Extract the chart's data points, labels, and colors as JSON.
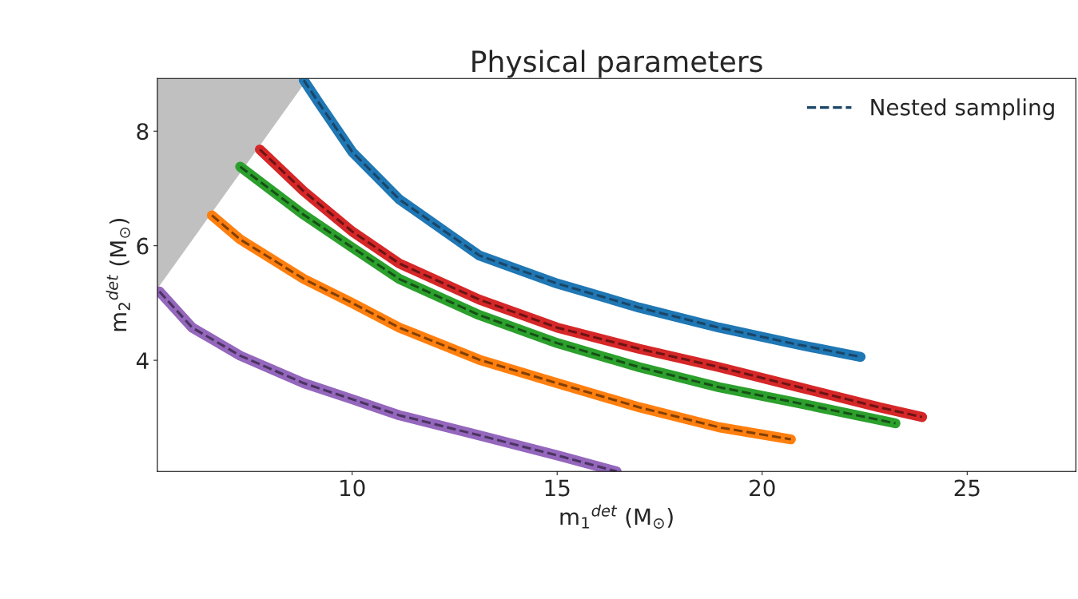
{
  "chart_data": {
    "type": "line",
    "title": "Physical parameters",
    "xlabel": "m$_{1}$$^{det}$ (M$_{⊙}$)",
    "ylabel": "m$_{2}$$^{det}$ (M$_{⊙}$)",
    "xlim": [
      5.25,
      27.65
    ],
    "ylim": [
      2.06,
      8.92
    ],
    "xticks": [
      10,
      15,
      20,
      25
    ],
    "yticks": [
      4,
      6,
      8
    ],
    "grid": false,
    "legend": "top right",
    "series": [
      {
        "type": "area",
        "color": "#c0c0c0",
        "x": [
          5.25,
          8.92
        ],
        "values": [
          5.25,
          8.92
        ]
      },
      {
        "color": "#1f77b4",
        "line_style": "solid",
        "x": [
          8.82,
          9.21,
          10,
          11.15,
          13.1,
          15,
          17,
          18.95,
          20.9,
          22.4
        ],
        "values": [
          8.89,
          8.47,
          7.64,
          6.81,
          5.83,
          5.34,
          4.92,
          4.57,
          4.27,
          4.06
        ]
      },
      {
        "color": "#d62728",
        "line_style": "solid",
        "x": [
          7.75,
          8.82,
          10,
          11.15,
          13.1,
          15,
          17,
          18.95,
          20.9,
          22.85,
          23.9
        ],
        "values": [
          7.68,
          6.95,
          6.25,
          5.69,
          5.06,
          4.57,
          4.2,
          3.88,
          3.53,
          3.18,
          3.01
        ]
      },
      {
        "color": "#2ca02c",
        "line_style": "solid",
        "x": [
          7.27,
          8.82,
          10,
          11.15,
          13.1,
          15,
          17,
          18.95,
          20.9,
          23.25
        ],
        "values": [
          7.38,
          6.54,
          5.97,
          5.42,
          4.79,
          4.3,
          3.88,
          3.53,
          3.25,
          2.9
        ]
      },
      {
        "color": "#ff7f0e",
        "line_style": "solid",
        "x": [
          6.58,
          7.27,
          8.82,
          10,
          11.15,
          13.1,
          15,
          17,
          18.95,
          20.7
        ],
        "values": [
          6.53,
          6.11,
          5.42,
          5.0,
          4.57,
          4.01,
          3.6,
          3.18,
          2.83,
          2.62
        ]
      },
      {
        "color": "#9467bd",
        "line_style": "solid",
        "x": [
          5.3,
          6.1,
          7.27,
          8.82,
          10,
          11.15,
          13.1,
          15,
          16.45
        ],
        "values": [
          5.2,
          4.57,
          4.08,
          3.6,
          3.32,
          3.04,
          2.69,
          2.34,
          2.06
        ]
      },
      {
        "name": "Nested sampling",
        "color": "#1a4566",
        "line_style": "dashed",
        "x": [
          8.82,
          9.21,
          10,
          11.15,
          13.1,
          15,
          17,
          18.95,
          20.9,
          22.4
        ],
        "values": [
          8.89,
          8.47,
          7.64,
          6.81,
          5.83,
          5.34,
          4.92,
          4.57,
          4.27,
          4.06
        ]
      },
      {
        "color": "#6b1414",
        "line_style": "dashed",
        "x": [
          7.75,
          8.82,
          10,
          11.15,
          13.1,
          15,
          17,
          18.95,
          20.9,
          22.85,
          23.9
        ],
        "values": [
          7.68,
          6.95,
          6.25,
          5.69,
          5.06,
          4.57,
          4.2,
          3.88,
          3.53,
          3.18,
          3.01
        ]
      },
      {
        "color": "#165016",
        "line_style": "dashed",
        "x": [
          7.27,
          8.82,
          10,
          11.15,
          13.1,
          15,
          17,
          18.95,
          20.9,
          23.25
        ],
        "values": [
          7.38,
          6.54,
          5.97,
          5.42,
          4.79,
          4.3,
          3.88,
          3.53,
          3.25,
          2.9
        ]
      },
      {
        "color": "#804007",
        "line_style": "dashed",
        "x": [
          6.58,
          7.27,
          8.82,
          10,
          11.15,
          13.1,
          15,
          17,
          18.95,
          20.7
        ],
        "values": [
          6.53,
          6.11,
          5.42,
          5.0,
          4.57,
          4.01,
          3.6,
          3.18,
          2.83,
          2.62
        ]
      },
      {
        "color": "#4a345f",
        "line_style": "dashed",
        "x": [
          5.3,
          6.1,
          7.27,
          8.82,
          10,
          11.15,
          13.1,
          15,
          16.45
        ],
        "values": [
          5.2,
          4.57,
          4.08,
          3.6,
          3.32,
          3.04,
          2.69,
          2.34,
          2.06
        ]
      }
    ]
  }
}
